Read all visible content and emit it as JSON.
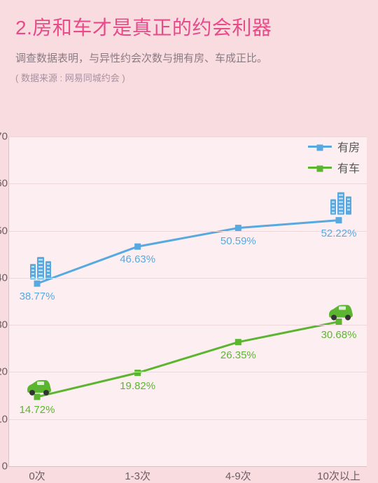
{
  "title": "2.房和车才是真正的约会利器",
  "subtitle": "调查数据表明，与异性约会次数与拥有房、车成正比。",
  "source": "( 数据来源 : 网易同城约会 )",
  "chart": {
    "type": "line",
    "background_color": "#fdeff1",
    "page_background": "#f9dce0",
    "grid_color": "#eed7db",
    "axis_color": "#d7c3c7",
    "tick_fontsize": 15,
    "tick_color": "#6b5d63",
    "ylim": [
      0,
      70
    ],
    "ytick_step": 10,
    "x_categories": [
      "0次",
      "1-3次",
      "4-9次",
      "10次以上"
    ],
    "series": [
      {
        "name": "有房",
        "color": "#57a9e0",
        "marker": "square",
        "marker_size": 9,
        "line_width": 3,
        "values": [
          38.77,
          46.63,
          50.59,
          52.22
        ],
        "labels": [
          "38.77%",
          "46.63%",
          "50.59%",
          "52.22%"
        ],
        "label_position": "below",
        "icon": "building"
      },
      {
        "name": "有车",
        "color": "#5cb530",
        "marker": "square",
        "marker_size": 9,
        "line_width": 3,
        "values": [
          14.72,
          19.82,
          26.35,
          30.68
        ],
        "labels": [
          "14.72%",
          "19.82%",
          "26.35%",
          "30.68%"
        ],
        "label_position": "below",
        "icon": "car"
      }
    ],
    "legend": {
      "position": "top-right",
      "fontsize": 16
    }
  },
  "colors": {
    "title": "#e84a8a",
    "subtitle": "#8a7b83",
    "source": "#a790a0"
  }
}
